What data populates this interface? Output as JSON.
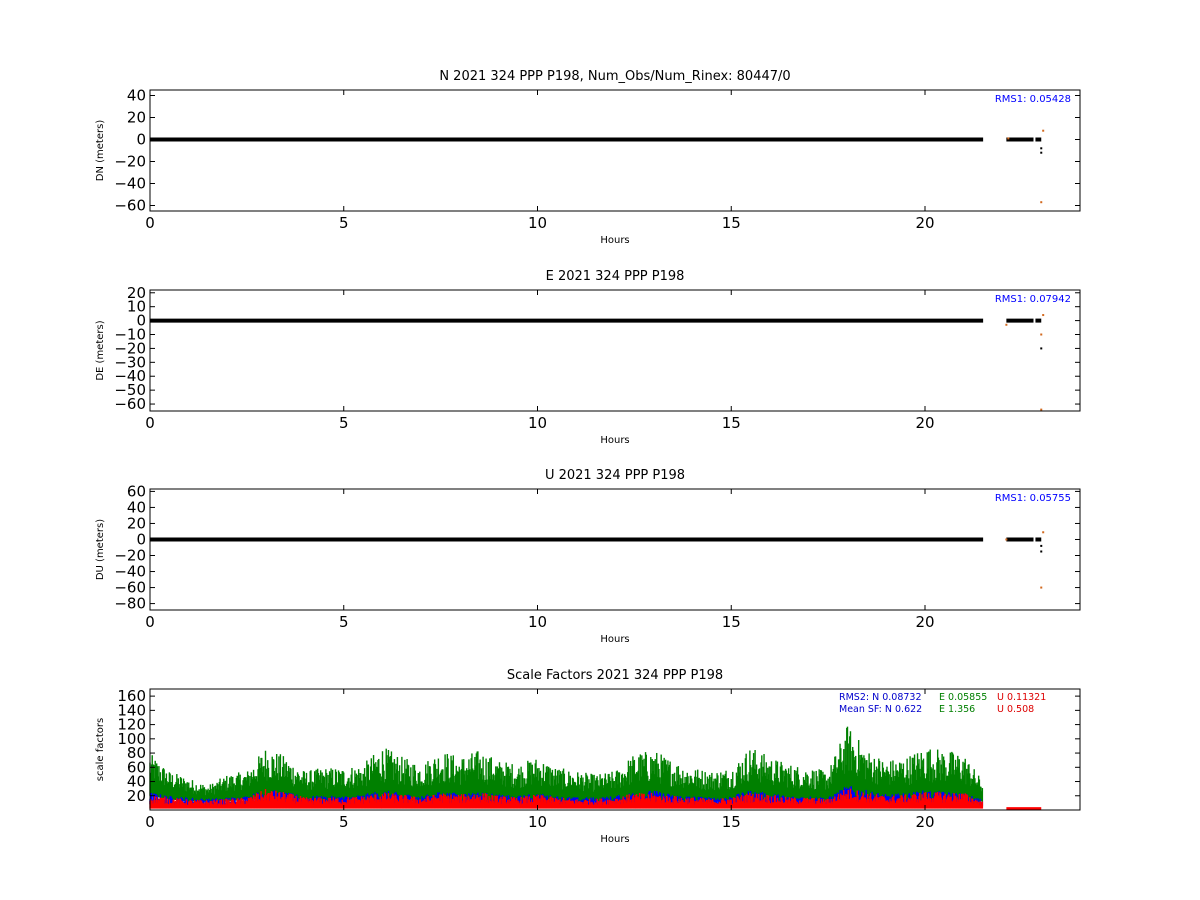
{
  "chart_data": [
    {
      "type": "scatter",
      "title": "N 2021 324 PPP  P198, Num_Obs/Num_Rinex: 80447/0",
      "xlabel": "Hours",
      "ylabel": "DN (meters)",
      "xlim": [
        0,
        24
      ],
      "ylim": [
        -65,
        45
      ],
      "xticks": [
        "0",
        "5",
        "10",
        "15",
        "20"
      ],
      "yticks": [
        "40",
        "20",
        "0",
        "−20",
        "−40",
        "−60"
      ],
      "ytick_values": [
        40,
        20,
        0,
        -20,
        -40,
        -60
      ],
      "rms_label": "RMS1:  0.05428",
      "rms_color": "#0000ff",
      "series": [
        {
          "color": "#000000",
          "segments": [
            [
              0,
              21.5
            ],
            [
              22.1,
              22.8
            ],
            [
              22.85,
              23.0
            ]
          ]
        }
      ],
      "outliers": [
        {
          "x": 23.0,
          "y": -12,
          "color": "#000000"
        },
        {
          "x": 23.0,
          "y": -8,
          "color": "#000000"
        },
        {
          "x": 23.05,
          "y": 8,
          "color": "#d2691e"
        },
        {
          "x": 23.0,
          "y": -57,
          "color": "#d2691e"
        },
        {
          "x": 22.15,
          "y": 1,
          "color": "#d2691e"
        }
      ]
    },
    {
      "type": "scatter",
      "title": "E 2021 324 PPP  P198",
      "xlabel": "Hours",
      "ylabel": "DE (meters)",
      "xlim": [
        0,
        24
      ],
      "ylim": [
        -65,
        22
      ],
      "xticks": [
        "0",
        "5",
        "10",
        "15",
        "20"
      ],
      "yticks": [
        "20",
        "10",
        "0",
        "−10",
        "−20",
        "−30",
        "−40",
        "−50",
        "−60"
      ],
      "ytick_values": [
        20,
        10,
        0,
        -10,
        -20,
        -30,
        -40,
        -50,
        -60
      ],
      "rms_label": "RMS1:  0.07942",
      "rms_color": "#0000ff",
      "series": [
        {
          "color": "#000000",
          "segments": [
            [
              0,
              21.5
            ],
            [
              22.1,
              22.8
            ],
            [
              22.85,
              23.0
            ]
          ]
        }
      ],
      "outliers": [
        {
          "x": 23.0,
          "y": -20,
          "color": "#000000"
        },
        {
          "x": 23.0,
          "y": -10,
          "color": "#d2691e"
        },
        {
          "x": 23.05,
          "y": 4,
          "color": "#d2691e"
        },
        {
          "x": 22.1,
          "y": -3,
          "color": "#d2691e"
        },
        {
          "x": 23.0,
          "y": -64,
          "color": "#d2691e"
        }
      ]
    },
    {
      "type": "scatter",
      "title": "U 2021 324 PPP  P198",
      "xlabel": "Hours",
      "ylabel": "DU (meters)",
      "xlim": [
        0,
        24
      ],
      "ylim": [
        -88,
        63
      ],
      "xticks": [
        "0",
        "5",
        "10",
        "15",
        "20"
      ],
      "yticks": [
        "60",
        "40",
        "20",
        "0",
        "−20",
        "−40",
        "−60",
        "−80"
      ],
      "ytick_values": [
        60,
        40,
        20,
        0,
        -20,
        -40,
        -60,
        -80
      ],
      "rms_label": "RMS1:  0.05755",
      "rms_color": "#0000ff",
      "series": [
        {
          "color": "#000000",
          "segments": [
            [
              0,
              21.5
            ],
            [
              22.1,
              22.8
            ],
            [
              22.85,
              23.0
            ]
          ]
        }
      ],
      "outliers": [
        {
          "x": 23.0,
          "y": -15,
          "color": "#000000"
        },
        {
          "x": 23.0,
          "y": -8,
          "color": "#000000"
        },
        {
          "x": 23.05,
          "y": 9,
          "color": "#d2691e"
        },
        {
          "x": 23.0,
          "y": -60,
          "color": "#d2691e"
        },
        {
          "x": 22.1,
          "y": 0,
          "color": "#d2691e"
        }
      ]
    },
    {
      "type": "scatter",
      "title": "Scale Factors 2021 324 PPP  P198",
      "xlabel": "Hours",
      "ylabel": "scale factors",
      "xlim": [
        0,
        24
      ],
      "ylim": [
        0,
        170
      ],
      "xticks": [
        "0",
        "5",
        "10",
        "15",
        "20"
      ],
      "yticks": [
        "160",
        "140",
        "120",
        "100",
        "80",
        "60",
        "40",
        "20"
      ],
      "ytick_values": [
        160,
        140,
        120,
        100,
        80,
        60,
        40,
        20
      ],
      "annotations": [
        {
          "label": "RMS2: N  0.08732",
          "color": "#0000cc"
        },
        {
          "label": "E  0.05855",
          "color": "#007f00"
        },
        {
          "label": "U  0.11321",
          "color": "#dd0000"
        },
        {
          "label": "Mean SF: N   0.622",
          "color": "#0000cc"
        },
        {
          "label": "E   1.356",
          "color": "#007f00"
        },
        {
          "label": "U   0.508",
          "color": "#dd0000"
        }
      ],
      "series": [
        {
          "color": "#008000",
          "x": [
            0,
            0.5,
            1,
            1.5,
            2,
            2.5,
            3,
            3.5,
            4,
            4.5,
            5,
            5.5,
            6,
            6.5,
            7,
            7.5,
            8,
            8.5,
            9,
            9.5,
            10,
            10.5,
            11,
            11.5,
            12,
            12.5,
            13,
            13.5,
            14,
            14.5,
            15,
            15.5,
            16,
            16.5,
            17,
            17.5,
            18,
            18.5,
            19,
            19.5,
            20,
            20.5,
            21,
            21.5
          ],
          "y_high": [
            80,
            55,
            45,
            35,
            50,
            55,
            90,
            75,
            55,
            60,
            60,
            65,
            90,
            75,
            65,
            85,
            75,
            85,
            70,
            65,
            75,
            60,
            55,
            50,
            55,
            80,
            85,
            70,
            60,
            55,
            60,
            90,
            75,
            65,
            60,
            55,
            120,
            85,
            70,
            75,
            90,
            85,
            80,
            40
          ],
          "y_low": [
            20,
            15,
            12,
            12,
            12,
            15,
            15,
            15,
            12,
            12,
            12,
            12,
            12,
            12,
            12,
            12,
            12,
            12,
            12,
            12,
            12,
            12,
            12,
            12,
            12,
            12,
            12,
            12,
            12,
            12,
            12,
            12,
            12,
            12,
            12,
            12,
            15,
            15,
            12,
            12,
            12,
            12,
            12,
            12
          ]
        },
        {
          "color": "#0000ff",
          "x": [
            0,
            0.5,
            1,
            1.5,
            2,
            2.5,
            3,
            3.5,
            4,
            4.5,
            5,
            5.5,
            6,
            6.5,
            7,
            7.5,
            8,
            8.5,
            9,
            9.5,
            10,
            10.5,
            11,
            11.5,
            12,
            12.5,
            13,
            13.5,
            14,
            14.5,
            15,
            15.5,
            16,
            16.5,
            17,
            17.5,
            18,
            18.5,
            19,
            19.5,
            20,
            20.5,
            21,
            21.5
          ],
          "y_high": [
            25,
            20,
            18,
            16,
            18,
            20,
            30,
            25,
            20,
            20,
            20,
            22,
            28,
            24,
            20,
            26,
            24,
            26,
            22,
            20,
            24,
            20,
            18,
            18,
            20,
            26,
            28,
            22,
            20,
            18,
            20,
            28,
            24,
            20,
            20,
            18,
            35,
            28,
            22,
            24,
            28,
            26,
            24,
            15
          ],
          "y_low": [
            8,
            6,
            5,
            5,
            5,
            6,
            6,
            6,
            5,
            5,
            5,
            5,
            5,
            5,
            5,
            5,
            5,
            5,
            5,
            5,
            5,
            5,
            5,
            5,
            5,
            5,
            5,
            5,
            5,
            5,
            5,
            5,
            5,
            5,
            5,
            5,
            6,
            6,
            5,
            5,
            5,
            5,
            5,
            5
          ]
        },
        {
          "color": "#ff0000",
          "x": [
            0,
            0.5,
            1,
            1.5,
            2,
            2.5,
            3,
            3.5,
            4,
            4.5,
            5,
            5.5,
            6,
            6.5,
            7,
            7.5,
            8,
            8.5,
            9,
            9.5,
            10,
            10.5,
            11,
            11.5,
            12,
            12.5,
            13,
            13.5,
            14,
            14.5,
            15,
            15.5,
            16,
            16.5,
            17,
            17.5,
            18,
            18.5,
            19,
            19.5,
            20,
            20.5,
            21,
            21.5
          ],
          "y_high": [
            22,
            18,
            15,
            14,
            16,
            18,
            30,
            25,
            18,
            18,
            18,
            20,
            25,
            22,
            18,
            24,
            22,
            26,
            20,
            18,
            22,
            18,
            16,
            16,
            18,
            24,
            24,
            20,
            18,
            16,
            18,
            25,
            22,
            18,
            18,
            16,
            32,
            25,
            20,
            22,
            26,
            25,
            25,
            12
          ],
          "y_low": [
            2,
            2,
            2,
            2,
            2,
            2,
            2,
            2,
            2,
            2,
            2,
            2,
            2,
            2,
            2,
            2,
            2,
            2,
            2,
            2,
            2,
            2,
            2,
            2,
            2,
            2,
            2,
            2,
            2,
            2,
            2,
            2,
            2,
            2,
            2,
            2,
            2,
            2,
            2,
            2,
            2,
            2,
            2,
            2
          ]
        }
      ],
      "tail": {
        "x": [
          22.1,
          23.0
        ],
        "y": [
          2,
          4
        ],
        "color": "#ff0000"
      }
    }
  ]
}
